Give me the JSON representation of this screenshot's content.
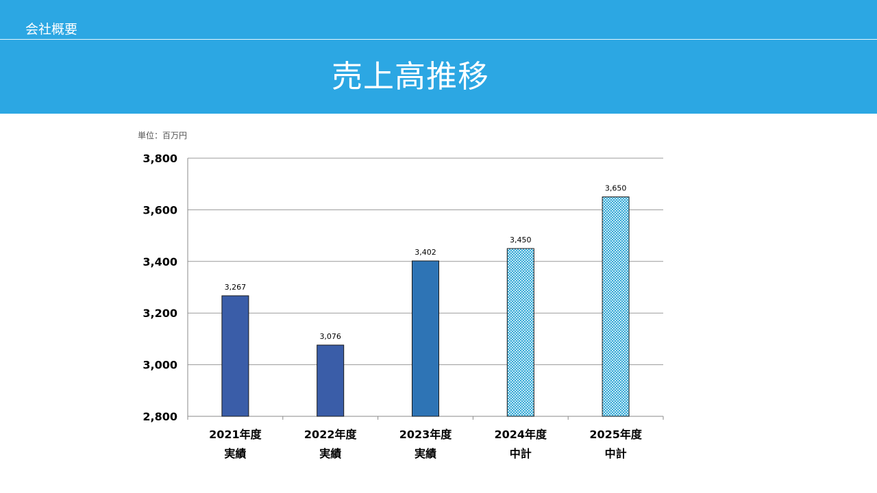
{
  "header": {
    "section": "会社概要",
    "title": "売上高推移"
  },
  "chart_data": {
    "type": "bar",
    "unit_label": "単位：百万円",
    "categories": [
      [
        "2021年度",
        "実績"
      ],
      [
        "2022年度",
        "実績"
      ],
      [
        "2023年度",
        "実績"
      ],
      [
        "2024年度",
        "中計"
      ],
      [
        "2025年度",
        "中計"
      ]
    ],
    "values": [
      3267,
      3076,
      3402,
      3450,
      3650
    ],
    "value_labels": [
      "3,267",
      "3,076",
      "3,402",
      "3,450",
      "3,650"
    ],
    "bar_styles": [
      "solid",
      "solid",
      "solid",
      "hatched",
      "hatched"
    ],
    "ylim": [
      2800,
      3800
    ],
    "yticks": [
      2800,
      3000,
      3200,
      3400,
      3600,
      3800
    ],
    "ytick_labels": [
      "2,800",
      "3,000",
      "3,200",
      "3,400",
      "3,600",
      "3,800"
    ],
    "grid": true,
    "colors": {
      "bar_2021": "#3a5da8",
      "bar_2022": "#3a5da8",
      "bar_2023": "#2e74b5",
      "hatch": "#25a3d4",
      "grid": "#9a9a9a",
      "header": "#2ca7e3"
    }
  }
}
